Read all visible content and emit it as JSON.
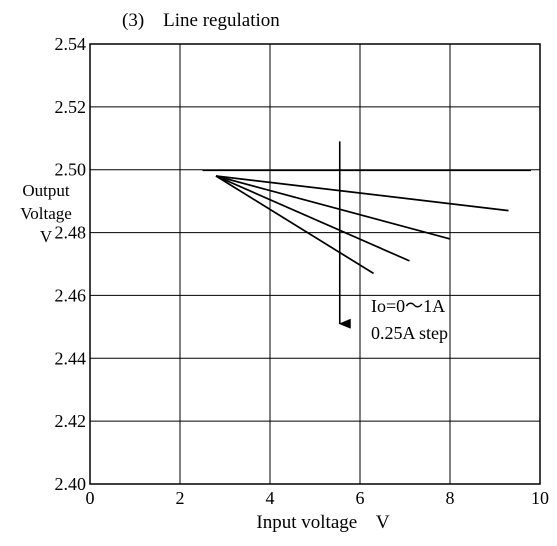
{
  "chart_data": {
    "type": "line",
    "title": "(3)    Line regulation",
    "xlabel": "Input voltage    V",
    "ylabel": [
      "Output",
      "Voltage",
      "V"
    ],
    "xlim": [
      0,
      10
    ],
    "ylim": [
      2.4,
      2.54
    ],
    "grid": true,
    "x_ticks": [
      "0",
      "2",
      "4",
      "6",
      "8",
      "10"
    ],
    "y_ticks": [
      "2.54",
      "2.52",
      "2.50",
      "2.48",
      "2.46",
      "2.44",
      "2.42",
      "2.40"
    ],
    "series": [
      {
        "values": [
          [
            2.5,
            2.4998
          ],
          [
            9.8,
            2.4998
          ]
        ]
      },
      {
        "values": [
          [
            2.8,
            2.498
          ],
          [
            9.3,
            2.487
          ]
        ]
      },
      {
        "values": [
          [
            2.8,
            2.498
          ],
          [
            8.0,
            2.478
          ]
        ]
      },
      {
        "values": [
          [
            2.8,
            2.498
          ],
          [
            7.1,
            2.471
          ]
        ]
      },
      {
        "values": [
          [
            2.8,
            2.498
          ],
          [
            6.3,
            2.467
          ]
        ]
      }
    ],
    "annotation": {
      "lines": [
        "Io=0〜1A",
        "0.25A step"
      ],
      "arrow_x": 5.55,
      "arrow_from": 2.509,
      "arrow_to": 2.451
    }
  }
}
